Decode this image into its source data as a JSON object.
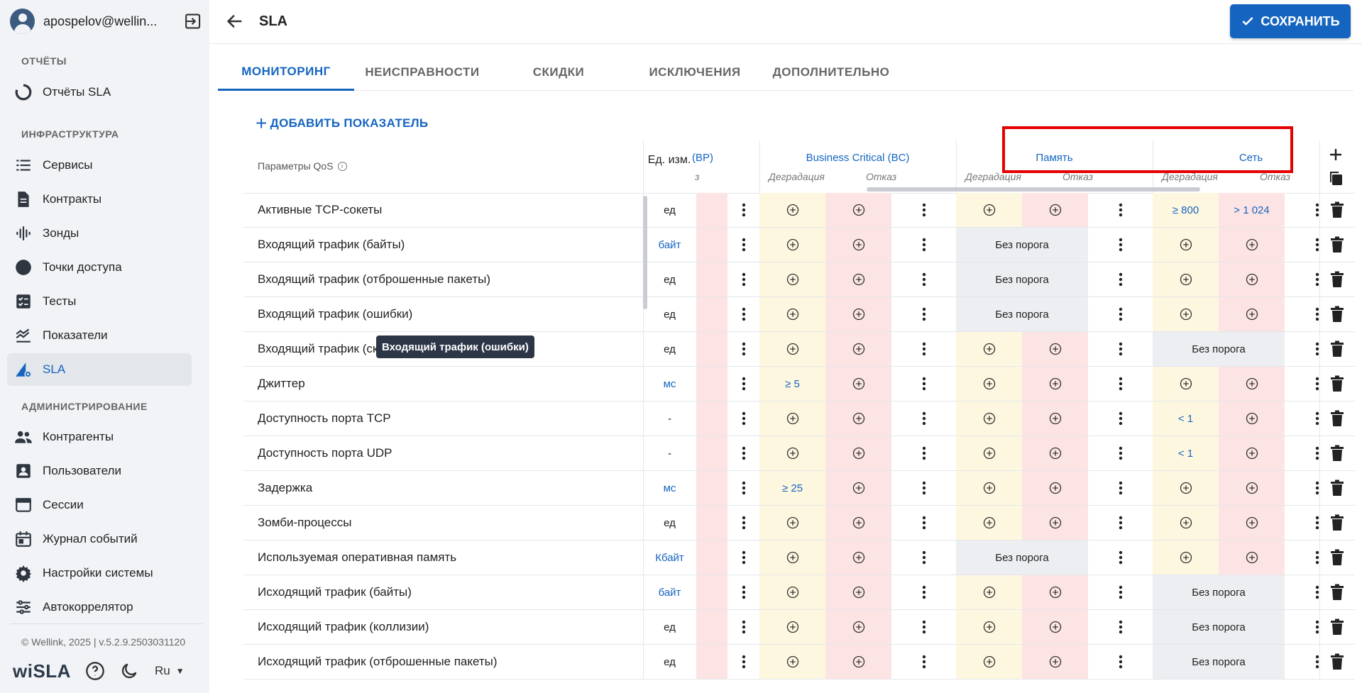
{
  "user": {
    "name": "apospelov@wellin..."
  },
  "sidebar": {
    "sections": [
      {
        "title": "ОТЧЁТЫ"
      },
      {
        "title": "ИНФРАСТРУКТУРА"
      },
      {
        "title": "АДМИНИСТРИРОВАНИЕ"
      }
    ],
    "items": [
      {
        "label": "Отчёты SLA",
        "icon": "reports-icon"
      },
      {
        "label": "Сервисы",
        "icon": "list-icon"
      },
      {
        "label": "Контракты",
        "icon": "document-icon"
      },
      {
        "label": "Зонды",
        "icon": "waveform-icon"
      },
      {
        "label": "Точки доступа",
        "icon": "circle-icon"
      },
      {
        "label": "Тесты",
        "icon": "checklist-icon"
      },
      {
        "label": "Показатели",
        "icon": "metrics-icon"
      },
      {
        "label": "SLA",
        "icon": "sla-gear-icon"
      },
      {
        "label": "Контрагенты",
        "icon": "people-icon"
      },
      {
        "label": "Пользователи",
        "icon": "user-card-icon"
      },
      {
        "label": "Сессии",
        "icon": "window-icon"
      },
      {
        "label": "Журнал событий",
        "icon": "calendar-icon"
      },
      {
        "label": "Настройки системы",
        "icon": "gear-icon"
      },
      {
        "label": "Автокоррелятор",
        "icon": "sliders-icon"
      }
    ],
    "copyright": "© Wellink, 2025 | v.5.2.9.2503031120",
    "logo": "wiSLA",
    "language": "Ru"
  },
  "header": {
    "title": "SLA",
    "save_label": "СОХРАНИТЬ"
  },
  "tabs": [
    {
      "label": "МОНИТОРИНГ"
    },
    {
      "label": "НЕИСПРАВНОСТИ"
    },
    {
      "label": "СКИДКИ"
    },
    {
      "label": "ИСКЛЮЧЕНИЯ"
    },
    {
      "label": "ДОПОЛНИТЕЛЬНО"
    }
  ],
  "table": {
    "add_label": "ДОБАВИТЬ ПОКАЗАТЕЛЬ",
    "params_header": "Параметры QoS",
    "units_header": "Ед. изм.",
    "groups": [
      {
        "name": "(BP)"
      },
      {
        "name": "Business Critical (BC)"
      },
      {
        "name": "Память"
      },
      {
        "name": "Сеть"
      }
    ],
    "sub_headers": {
      "degradation": "Деградация",
      "failure": "Отказ",
      "failure_cut": "з"
    },
    "no_threshold": "Без порога",
    "rows": [
      {
        "param": "Активные TCP-сокеты",
        "unit": "ед",
        "unit_link": false,
        "bc": [
          "+",
          "+"
        ],
        "mem": [
          "+",
          "+"
        ],
        "net": [
          "≥ 800",
          "> 1 024"
        ]
      },
      {
        "param": "Входящий трафик (байты)",
        "unit": "байт",
        "unit_link": true,
        "bc": [
          "+",
          "+"
        ],
        "mem": "none",
        "net": [
          "+",
          "+"
        ]
      },
      {
        "param": "Входящий трафик (отброшенные пакеты)",
        "unit": "ед",
        "unit_link": false,
        "bc": [
          "+",
          "+"
        ],
        "mem": "none",
        "net": [
          "+",
          "+"
        ]
      },
      {
        "param": "Входящий трафик (ошибки)",
        "unit": "ед",
        "unit_link": false,
        "bc": [
          "+",
          "+"
        ],
        "mem": "none",
        "net": [
          "+",
          "+"
        ]
      },
      {
        "param": "Входящий трафик (ск",
        "unit": "ед",
        "unit_link": false,
        "bc": [
          "+",
          "+"
        ],
        "mem": [
          "+",
          "+"
        ],
        "net": "none"
      },
      {
        "param": "Джиттер",
        "unit": "мс",
        "unit_link": true,
        "bc": [
          "≥ 5",
          "+"
        ],
        "mem": [
          "+",
          "+"
        ],
        "net": [
          "+",
          "+"
        ]
      },
      {
        "param": "Доступность порта TCP",
        "unit": "-",
        "unit_link": false,
        "bc": [
          "+",
          "+"
        ],
        "mem": [
          "+",
          "+"
        ],
        "net": [
          "< 1",
          "+"
        ]
      },
      {
        "param": "Доступность порта UDP",
        "unit": "-",
        "unit_link": false,
        "bc": [
          "+",
          "+"
        ],
        "mem": [
          "+",
          "+"
        ],
        "net": [
          "< 1",
          "+"
        ]
      },
      {
        "param": "Задержка",
        "unit": "мс",
        "unit_link": true,
        "bc": [
          "≥ 25",
          "+"
        ],
        "mem": [
          "+",
          "+"
        ],
        "net": [
          "+",
          "+"
        ]
      },
      {
        "param": "Зомби-процессы",
        "unit": "ед",
        "unit_link": false,
        "bc": [
          "+",
          "+"
        ],
        "mem": [
          "+",
          "+"
        ],
        "net": [
          "+",
          "+"
        ]
      },
      {
        "param": "Используемая оперативная память",
        "unit": "Кбайт",
        "unit_link": true,
        "bc": [
          "+",
          "+"
        ],
        "mem": "none",
        "net": [
          "+",
          "+"
        ]
      },
      {
        "param": "Исходящий трафик (байты)",
        "unit": "байт",
        "unit_link": true,
        "bc": [
          "+",
          "+"
        ],
        "mem": [
          "+",
          "+"
        ],
        "net": "none"
      },
      {
        "param": "Исходящий трафик (коллизии)",
        "unit": "ед",
        "unit_link": false,
        "bc": [
          "+",
          "+"
        ],
        "mem": [
          "+",
          "+"
        ],
        "net": "none"
      },
      {
        "param": "Исходящий трафик (отброшенные пакеты)",
        "unit": "ед",
        "unit_link": false,
        "bc": [
          "+",
          "+"
        ],
        "mem": [
          "+",
          "+"
        ],
        "net": "none"
      }
    ],
    "tooltip": "Входящий трафик (ошибки)"
  },
  "colors": {
    "accent": "#1565c0",
    "degradation_bg": "#fef7e0",
    "failure_bg": "#fde4e4",
    "no_threshold_bg": "#eceef1",
    "highlight": "#e60000"
  }
}
